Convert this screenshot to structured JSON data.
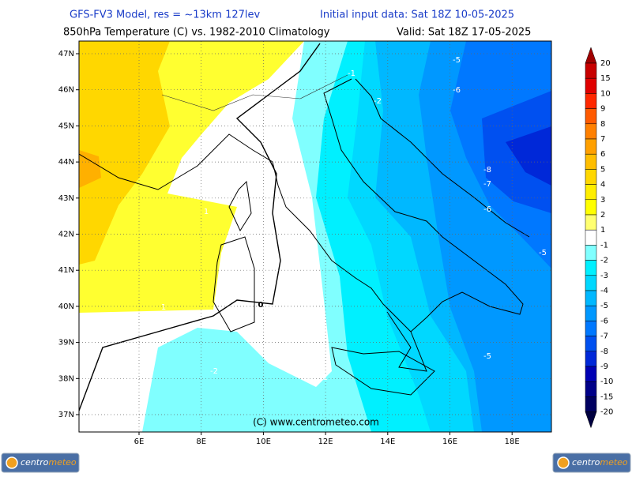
{
  "header": {
    "line1_left": "GFS-FV3 Model, res = ~13km 127lev",
    "line1_right": "Initial input data: Sat 18Z 10-05-2025",
    "line2_left": "850hPa Temperature (C) vs. 1982-2010 Climatology",
    "line2_right": "Valid: Sat 18Z 17-05-2025"
  },
  "map": {
    "lon_labels": [
      "6E",
      "8E",
      "10E",
      "12E",
      "14E",
      "16E",
      "18E"
    ],
    "lat_labels": [
      "47N",
      "46N",
      "45N",
      "44N",
      "43N",
      "42N",
      "41N",
      "40N",
      "39N",
      "38N",
      "37N"
    ],
    "contour_labels": [
      "-5",
      "-6",
      "-1",
      "-2",
      "-8",
      "-7",
      "-6",
      "-5",
      "1",
      "1",
      "0",
      "-2",
      "-1",
      "-5"
    ],
    "credit": "(C) www.centrometeo.com"
  },
  "colorbar": {
    "labels": [
      "20",
      "15",
      "10",
      "9",
      "8",
      "7",
      "6",
      "5",
      "4",
      "3",
      "2",
      "1",
      "-1",
      "-2",
      "-3",
      "-4",
      "-5",
      "-6",
      "-7",
      "-8",
      "-9",
      "-10",
      "-15",
      "-20"
    ],
    "colors": [
      "#a00000",
      "#c80000",
      "#e00000",
      "#ff2800",
      "#ff5a00",
      "#ff8000",
      "#ffa000",
      "#ffbe00",
      "#ffd700",
      "#ffee00",
      "#ffff00",
      "#ffff70",
      "#ffffff",
      "#80ffff",
      "#00f0ff",
      "#00d8ff",
      "#00b8ff",
      "#0098ff",
      "#0078ff",
      "#0050f0",
      "#0028d8",
      "#0000b4",
      "#000088",
      "#000060",
      "#000040"
    ]
  },
  "logos": {
    "left": {
      "part1": "centro",
      "part2": "meteo"
    },
    "right": {
      "part1": "centro",
      "part2": "meteo"
    }
  }
}
